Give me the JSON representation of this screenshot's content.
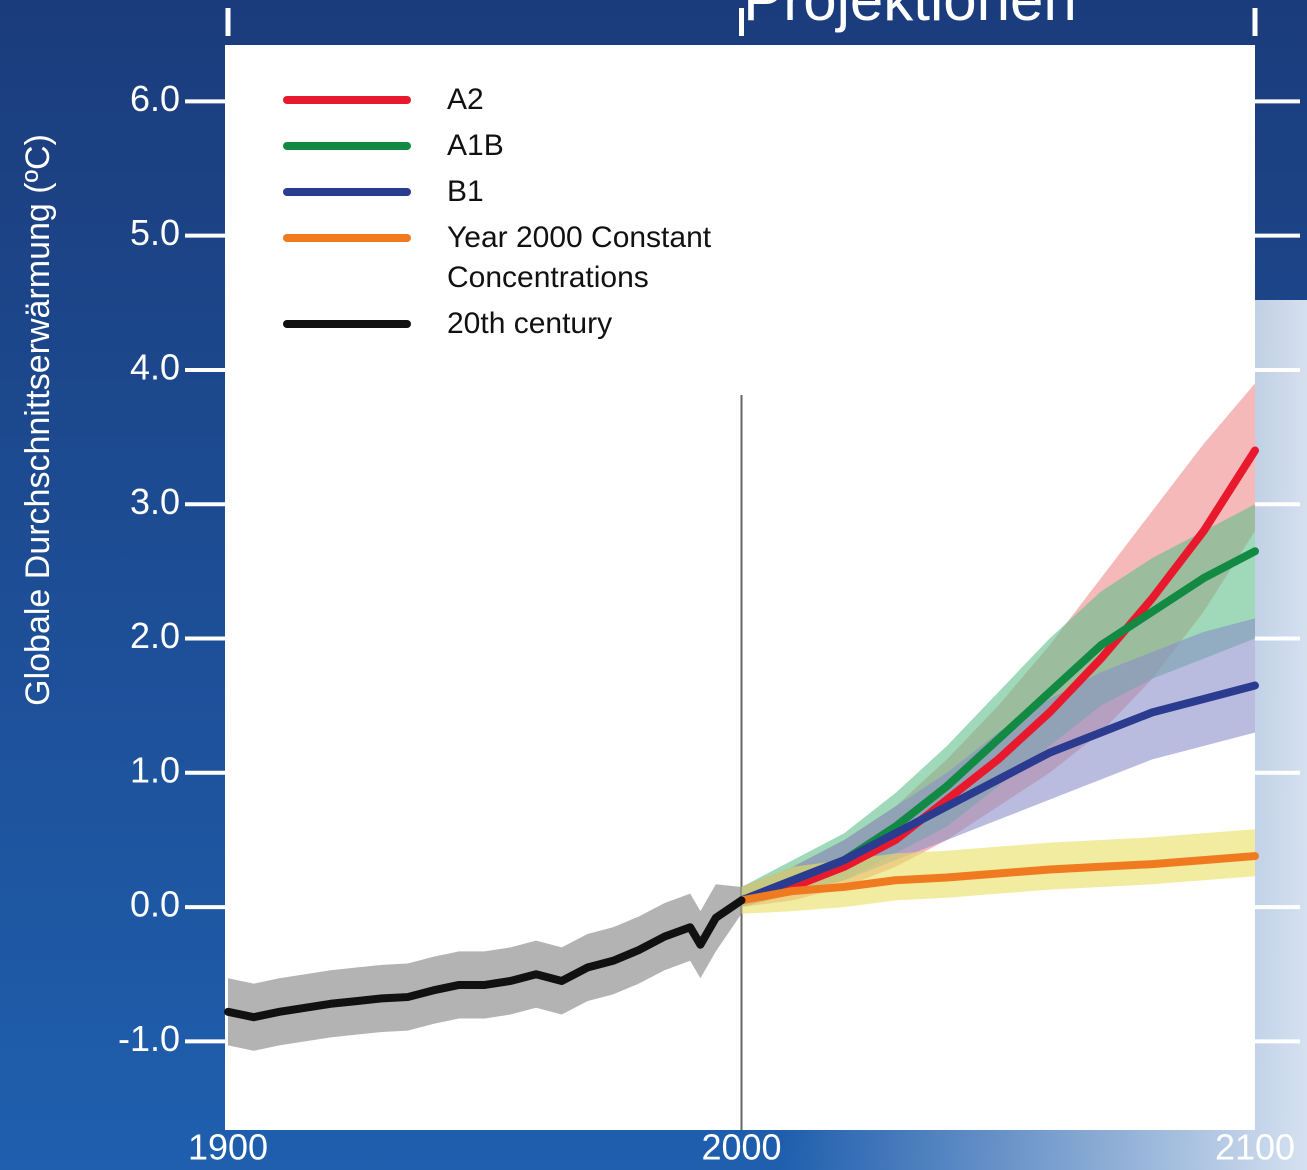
{
  "chart_data": {
    "type": "line",
    "title": "Projektionen",
    "y_label": "Globale Durchschnittserwärmung (ºC)",
    "xlim": [
      1900,
      2100
    ],
    "xticks": [
      1900,
      2000,
      2100
    ],
    "ylim": [
      -1.66,
      6.42
    ],
    "yticks": [
      {
        "value": -1,
        "label": "-1.0"
      },
      {
        "value": 0,
        "label": "0.0"
      },
      {
        "value": 1,
        "label": "1.0"
      },
      {
        "value": 2,
        "label": "2.0"
      },
      {
        "value": 3,
        "label": "3.0"
      },
      {
        "value": 4,
        "label": "4.0"
      },
      {
        "value": 5,
        "label": "5.0"
      },
      {
        "value": 6,
        "label": "6.0"
      }
    ],
    "divider_x": 2000,
    "legend": "upper left",
    "series": [
      {
        "name": "A2",
        "color": "#e8192c",
        "band_color": "#f08a8a",
        "x": [
          2000,
          2010,
          2020,
          2030,
          2040,
          2050,
          2060,
          2070,
          2080,
          2090,
          2100
        ],
        "values": [
          0.05,
          0.15,
          0.3,
          0.5,
          0.8,
          1.1,
          1.45,
          1.85,
          2.3,
          2.8,
          3.4
        ],
        "upper": [
          0.15,
          0.3,
          0.5,
          0.75,
          1.1,
          1.5,
          1.95,
          2.45,
          2.95,
          3.45,
          3.9
        ],
        "lower": [
          0,
          0.05,
          0.15,
          0.3,
          0.5,
          0.75,
          1.0,
          1.3,
          1.7,
          2.2,
          2.8
        ]
      },
      {
        "name": "A1B",
        "color": "#138a43",
        "band_color": "#5fc08a",
        "x": [
          2000,
          2010,
          2020,
          2030,
          2040,
          2050,
          2060,
          2070,
          2080,
          2090,
          2100
        ],
        "values": [
          0.05,
          0.2,
          0.35,
          0.6,
          0.9,
          1.25,
          1.6,
          1.95,
          2.2,
          2.45,
          2.65
        ],
        "upper": [
          0.15,
          0.35,
          0.55,
          0.85,
          1.2,
          1.6,
          2.0,
          2.35,
          2.6,
          2.8,
          3.0
        ],
        "lower": [
          0,
          0.1,
          0.2,
          0.4,
          0.6,
          0.9,
          1.2,
          1.5,
          1.7,
          1.85,
          2.0
        ]
      },
      {
        "name": "B1",
        "color": "#2b3b90",
        "band_color": "#8a90c8",
        "x": [
          2000,
          2010,
          2020,
          2030,
          2040,
          2050,
          2060,
          2070,
          2080,
          2090,
          2100
        ],
        "values": [
          0.05,
          0.2,
          0.35,
          0.55,
          0.75,
          0.95,
          1.15,
          1.3,
          1.45,
          1.55,
          1.65
        ],
        "upper": [
          0.15,
          0.3,
          0.5,
          0.75,
          1.0,
          1.3,
          1.55,
          1.75,
          1.9,
          2.05,
          2.15
        ],
        "lower": [
          0,
          0.1,
          0.2,
          0.35,
          0.5,
          0.65,
          0.8,
          0.95,
          1.1,
          1.2,
          1.3
        ]
      },
      {
        "name": "Year 2000 Constant Concentrations",
        "color": "#f07a20",
        "band_color": "#e8e060",
        "x": [
          2000,
          2010,
          2020,
          2030,
          2040,
          2050,
          2060,
          2070,
          2080,
          2090,
          2100
        ],
        "values": [
          0.05,
          0.12,
          0.15,
          0.2,
          0.22,
          0.25,
          0.28,
          0.3,
          0.32,
          0.35,
          0.38
        ],
        "upper": [
          0.15,
          0.3,
          0.35,
          0.4,
          0.42,
          0.45,
          0.48,
          0.5,
          0.52,
          0.55,
          0.58
        ],
        "lower": [
          -0.05,
          -0.03,
          0,
          0.05,
          0.07,
          0.1,
          0.13,
          0.15,
          0.17,
          0.2,
          0.23
        ]
      },
      {
        "name": "20th century",
        "color": "#111111",
        "band_color": "#808080",
        "x": [
          1900,
          1905,
          1910,
          1915,
          1920,
          1925,
          1930,
          1935,
          1940,
          1945,
          1950,
          1955,
          1960,
          1965,
          1970,
          1975,
          1980,
          1985,
          1990,
          1992,
          1995,
          2000
        ],
        "values": [
          -0.78,
          -0.82,
          -0.78,
          -0.75,
          -0.72,
          -0.7,
          -0.68,
          -0.67,
          -0.62,
          -0.58,
          -0.58,
          -0.55,
          -0.5,
          -0.55,
          -0.45,
          -0.4,
          -0.32,
          -0.22,
          -0.15,
          -0.28,
          -0.08,
          0.05
        ],
        "upper": [
          -0.53,
          -0.57,
          -0.53,
          -0.5,
          -0.47,
          -0.45,
          -0.43,
          -0.42,
          -0.37,
          -0.33,
          -0.33,
          -0.3,
          -0.25,
          -0.3,
          -0.2,
          -0.15,
          -0.07,
          0.03,
          0.1,
          -0.03,
          0.17,
          0.15
        ],
        "lower": [
          -1.03,
          -1.07,
          -1.03,
          -1.0,
          -0.97,
          -0.95,
          -0.93,
          -0.92,
          -0.87,
          -0.83,
          -0.83,
          -0.8,
          -0.75,
          -0.8,
          -0.7,
          -0.65,
          -0.57,
          -0.47,
          -0.4,
          -0.53,
          -0.33,
          -0.05
        ]
      }
    ]
  }
}
